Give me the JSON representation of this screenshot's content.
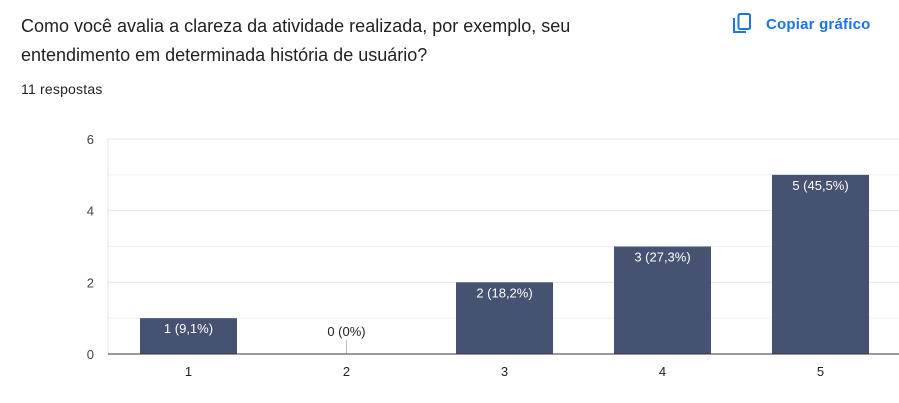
{
  "question": {
    "title": "Como você avalia a clareza da atividade realizada, por exemplo, seu entendimento em determinada história de usuário?",
    "response_count": "11 respostas"
  },
  "toolbar": {
    "copy_label": "Copiar gráfico",
    "copy_icon": "copy-icon"
  },
  "chart_data": {
    "type": "bar",
    "categories": [
      "1",
      "2",
      "3",
      "4",
      "5"
    ],
    "values": [
      1,
      0,
      2,
      3,
      5
    ],
    "data_labels": [
      "1 (9,1%)",
      "0 (0%)",
      "2 (18,2%)",
      "3 (27,3%)",
      "5 (45,5%)"
    ],
    "y_ticks": [
      0,
      2,
      4,
      6
    ],
    "ylim": [
      0,
      6
    ],
    "grid": true,
    "legend": "none",
    "colors": {
      "bar": "#455271",
      "accent": "#1a73e8",
      "gridline": "#e9e9e9",
      "axis": "#333333"
    }
  }
}
